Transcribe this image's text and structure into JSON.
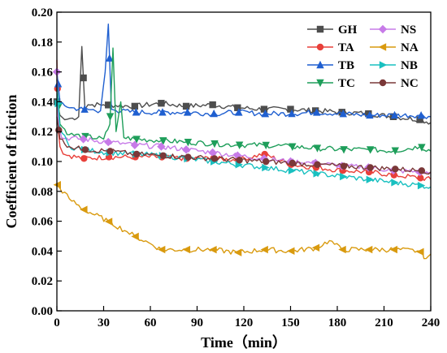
{
  "chart_data": {
    "type": "line",
    "xlabel": "Time（min）",
    "ylabel": "Coefficient of friction",
    "xlim": [
      0,
      240
    ],
    "ylim": [
      0,
      0.2
    ],
    "xticks": [
      "0",
      "30",
      "60",
      "90",
      "120",
      "150",
      "180",
      "210",
      "240"
    ],
    "yticks": [
      "0.00",
      "0.02",
      "0.04",
      "0.06",
      "0.08",
      "0.10",
      "0.12",
      "0.14",
      "0.16",
      "0.18",
      "0.20"
    ],
    "grid": false,
    "legend_position": "top-right",
    "series": [
      {
        "name": "GH",
        "color": "#4d4d4d",
        "marker": "square",
        "x": [
          0,
          2,
          5,
          10,
          14,
          16,
          18,
          20,
          30,
          50,
          67,
          83,
          100,
          116,
          133,
          150,
          166,
          183,
          200,
          216,
          233,
          240
        ],
        "y": [
          0.14,
          0.131,
          0.128,
          0.129,
          0.13,
          0.177,
          0.135,
          0.138,
          0.138,
          0.137,
          0.139,
          0.137,
          0.138,
          0.136,
          0.135,
          0.135,
          0.134,
          0.133,
          0.132,
          0.13,
          0.128,
          0.126
        ]
      },
      {
        "name": "TA",
        "color": "#e8403a",
        "marker": "circle",
        "x": [
          0,
          1,
          2,
          4,
          8,
          17,
          33,
          50,
          67,
          83,
          100,
          116,
          133,
          150,
          166,
          183,
          200,
          216,
          233,
          240
        ],
        "y": [
          0.168,
          0.12,
          0.11,
          0.105,
          0.104,
          0.102,
          0.103,
          0.103,
          0.103,
          0.102,
          0.102,
          0.101,
          0.105,
          0.098,
          0.096,
          0.094,
          0.093,
          0.091,
          0.089,
          0.088
        ]
      },
      {
        "name": "TB",
        "color": "#1f5fd0",
        "marker": "triangle",
        "x": [
          0,
          2,
          8,
          17,
          28,
          31,
          33,
          35,
          38,
          50,
          67,
          83,
          100,
          116,
          133,
          150,
          166,
          183,
          200,
          216,
          233,
          240
        ],
        "y": [
          0.16,
          0.14,
          0.136,
          0.135,
          0.134,
          0.16,
          0.192,
          0.135,
          0.134,
          0.133,
          0.133,
          0.133,
          0.132,
          0.133,
          0.132,
          0.132,
          0.133,
          0.132,
          0.131,
          0.131,
          0.131,
          0.13
        ]
      },
      {
        "name": "TC",
        "color": "#1e9e5a",
        "marker": "triangle-down",
        "x": [
          0,
          2,
          8,
          17,
          30,
          34,
          36,
          38,
          41,
          43,
          50,
          67,
          83,
          100,
          116,
          133,
          150,
          166,
          183,
          200,
          216,
          233,
          240
        ],
        "y": [
          0.155,
          0.125,
          0.118,
          0.117,
          0.115,
          0.125,
          0.176,
          0.12,
          0.14,
          0.116,
          0.115,
          0.114,
          0.113,
          0.112,
          0.111,
          0.111,
          0.11,
          0.109,
          0.108,
          0.108,
          0.107,
          0.11,
          0.107
        ]
      },
      {
        "name": "NS",
        "color": "#c77be8",
        "marker": "diamond",
        "x": [
          0,
          1,
          3,
          17,
          33,
          50,
          67,
          83,
          100,
          116,
          133,
          150,
          166,
          183,
          200,
          216,
          233,
          240
        ],
        "y": [
          0.16,
          0.125,
          0.116,
          0.115,
          0.113,
          0.111,
          0.11,
          0.108,
          0.106,
          0.104,
          0.102,
          0.1,
          0.099,
          0.097,
          0.096,
          0.094,
          0.093,
          0.092
        ]
      },
      {
        "name": "NA",
        "color": "#d99a0e",
        "marker": "triangle-left",
        "x": [
          0,
          2,
          8,
          17,
          33,
          45,
          50,
          60,
          67,
          83,
          100,
          116,
          133,
          150,
          166,
          175,
          183,
          200,
          216,
          233,
          237,
          240
        ],
        "y": [
          0.085,
          0.082,
          0.075,
          0.068,
          0.06,
          0.053,
          0.05,
          0.045,
          0.041,
          0.041,
          0.041,
          0.039,
          0.041,
          0.04,
          0.042,
          0.047,
          0.041,
          0.041,
          0.041,
          0.04,
          0.035,
          0.038
        ]
      },
      {
        "name": "NB",
        "color": "#19c0c0",
        "marker": "triangle-right",
        "x": [
          0,
          2,
          8,
          17,
          33,
          50,
          67,
          83,
          100,
          116,
          133,
          150,
          166,
          183,
          200,
          216,
          233,
          240
        ],
        "y": [
          0.15,
          0.122,
          0.11,
          0.108,
          0.106,
          0.105,
          0.104,
          0.102,
          0.1,
          0.098,
          0.096,
          0.094,
          0.092,
          0.09,
          0.088,
          0.086,
          0.084,
          0.083
        ]
      },
      {
        "name": "NC",
        "color": "#7a3838",
        "marker": "circle",
        "x": [
          0,
          2,
          8,
          17,
          33,
          50,
          67,
          83,
          100,
          116,
          133,
          150,
          166,
          183,
          200,
          216,
          233,
          240
        ],
        "y": [
          0.13,
          0.115,
          0.11,
          0.108,
          0.107,
          0.105,
          0.104,
          0.103,
          0.102,
          0.101,
          0.1,
          0.099,
          0.098,
          0.097,
          0.096,
          0.095,
          0.094,
          0.093
        ]
      }
    ]
  }
}
